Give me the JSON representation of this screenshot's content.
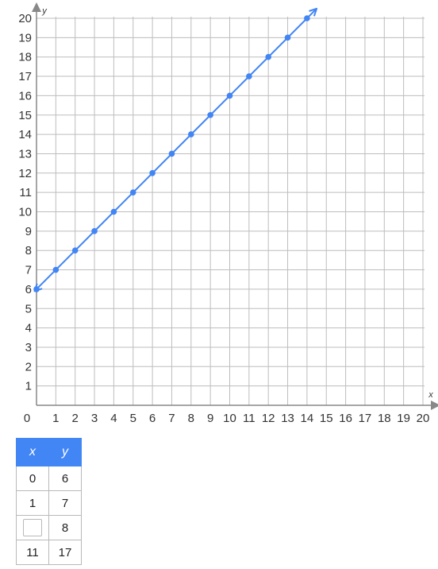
{
  "chart_data": {
    "type": "line",
    "xlabel": "x",
    "ylabel": "y",
    "xlim": [
      0,
      20
    ],
    "ylim": [
      0,
      20
    ],
    "x_ticks": [
      0,
      1,
      2,
      3,
      4,
      5,
      6,
      7,
      8,
      9,
      10,
      11,
      12,
      13,
      14,
      15,
      16,
      17,
      18,
      19,
      20
    ],
    "y_ticks": [
      1,
      2,
      3,
      4,
      5,
      6,
      7,
      8,
      9,
      10,
      11,
      12,
      13,
      14,
      15,
      16,
      17,
      18,
      19,
      20
    ],
    "grid": true,
    "line_color": "#4285f4",
    "points": {
      "x": [
        0,
        1,
        2,
        3,
        4,
        5,
        6,
        7,
        8,
        9,
        10,
        11,
        12,
        13,
        14
      ],
      "y": [
        6,
        7,
        8,
        9,
        10,
        11,
        12,
        13,
        14,
        15,
        16,
        17,
        18,
        19,
        20
      ]
    },
    "line_extends_both_directions": true
  },
  "table": {
    "headers": [
      "x",
      "y"
    ],
    "rows": [
      {
        "x": "0",
        "y": "6"
      },
      {
        "x": "1",
        "y": "7"
      },
      {
        "x": "",
        "y": "8",
        "x_is_input": true
      },
      {
        "x": "11",
        "y": "17"
      }
    ],
    "header_color": "#4285f4"
  }
}
